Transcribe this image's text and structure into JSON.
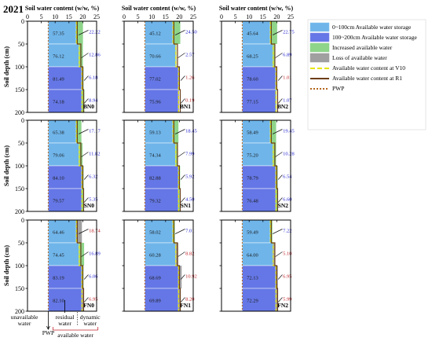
{
  "year": "2021",
  "x_axis_title": "Soil water content (w/w, %)",
  "y_axis_title": "Soil depth (cm)",
  "x_ticks": [
    "0",
    "5",
    "10",
    "15",
    "20",
    "25"
  ],
  "y_ticks": [
    "0",
    "50",
    "100",
    "150",
    "200"
  ],
  "legend": [
    {
      "label": "0~100cm Available water storage",
      "type": "rect",
      "color": "#6fb5ea",
      "stroke": "#8fc8ee"
    },
    {
      "label": "100~200cm Available water storage",
      "type": "rect",
      "color": "#6577e6",
      "stroke": "#8a94ea"
    },
    {
      "label": "Increased available water",
      "type": "rect",
      "color": "#8ed58a",
      "stroke": "#8ed58a"
    },
    {
      "label": "Loss of available water",
      "type": "rect",
      "color": "#a0a0a0",
      "stroke": "#a0a0a0"
    },
    {
      "label": "Available water content at V10",
      "type": "line",
      "color": "#e6e600",
      "dash": "6,3"
    },
    {
      "label": "Available water content at R1",
      "type": "line",
      "color": "#6b3e16",
      "dash": ""
    },
    {
      "label": "PWP",
      "type": "line",
      "color": "#b5651d",
      "dash": "2,2"
    }
  ],
  "annotations": {
    "unavailable_water": "unavailable\nwater",
    "pwp": "PWP",
    "residual_water": "residual\nwater",
    "dynamic_water": "dynamic\nwater",
    "available_water": "available water"
  },
  "colors": {
    "upper_fill": "#6fb5ea",
    "lower_fill": "#6577e6",
    "increase": "#8ed58a",
    "loss": "#a0a0a0",
    "v10": "#e6e600",
    "r1": "#6b3e16",
    "pwp": "#b5651d",
    "blue_text": "#2a2ad0",
    "red_text": "#c0282e"
  },
  "chart_data": {
    "type": "bar",
    "xlim": [
      0,
      25
    ],
    "ylim": [
      0,
      200
    ],
    "layers": [
      "0-50",
      "50-100",
      "100-150",
      "150-200"
    ],
    "panels": [
      {
        "name": "BN0",
        "storage": [
          57.35,
          76.12,
          81.49,
          74.18
        ],
        "change": [
          22.22,
          12.86,
          6.18,
          8.94
        ],
        "change_type": [
          "increase",
          "increase",
          "increase",
          "increase"
        ]
      },
      {
        "name": "BN1",
        "storage": [
          45.12,
          70.66,
          77.02,
          75.96
        ],
        "change": [
          24.5,
          2.57,
          1.26,
          0.19
        ],
        "change_type": [
          "increase",
          "increase",
          "loss",
          "loss"
        ]
      },
      {
        "name": "BN2",
        "storage": [
          45.64,
          68.25,
          78.6,
          77.15
        ],
        "change": [
          22.75,
          6.89,
          1.01,
          1.07
        ],
        "change_type": [
          "increase",
          "increase",
          "loss",
          "increase"
        ]
      },
      {
        "name": "SN0",
        "storage": [
          65.38,
          79.06,
          84.1,
          79.57
        ],
        "change": [
          17.17,
          11.82,
          6.32,
          5.35
        ],
        "change_type": [
          "increase",
          "increase",
          "increase",
          "increase"
        ]
      },
      {
        "name": "SN1",
        "storage": [
          59.13,
          74.34,
          82.88,
          79.32
        ],
        "change": [
          18.45,
          7.99,
          5.92,
          4.5
        ],
        "change_type": [
          "increase",
          "increase",
          "increase",
          "increase"
        ]
      },
      {
        "name": "SN2",
        "storage": [
          58.49,
          75.2,
          78.79,
          76.48
        ],
        "change": [
          19.45,
          10.28,
          6.54,
          6.6
        ],
        "change_type": [
          "increase",
          "increase",
          "increase",
          "increase"
        ]
      },
      {
        "name": "FN0",
        "storage": [
          64.46,
          74.45,
          83.19,
          82.1
        ],
        "change": [
          18.74,
          16.89,
          6.06,
          6.95
        ],
        "change_type": [
          "loss",
          "increase",
          "increase",
          "loss"
        ]
      },
      {
        "name": "FN1",
        "storage": [
          58.02,
          60.28,
          68.69,
          69.89
        ],
        "change": [
          7.01,
          8.82,
          10.92,
          8.2
        ],
        "change_type": [
          "increase",
          "loss",
          "loss",
          "loss"
        ]
      },
      {
        "name": "FN2",
        "storage": [
          59.49,
          64.0,
          72.13,
          72.29
        ],
        "change": [
          7.22,
          5.1,
          6.95,
          5.99
        ],
        "change_type": [
          "increase",
          "loss",
          "loss",
          "loss"
        ]
      }
    ]
  }
}
